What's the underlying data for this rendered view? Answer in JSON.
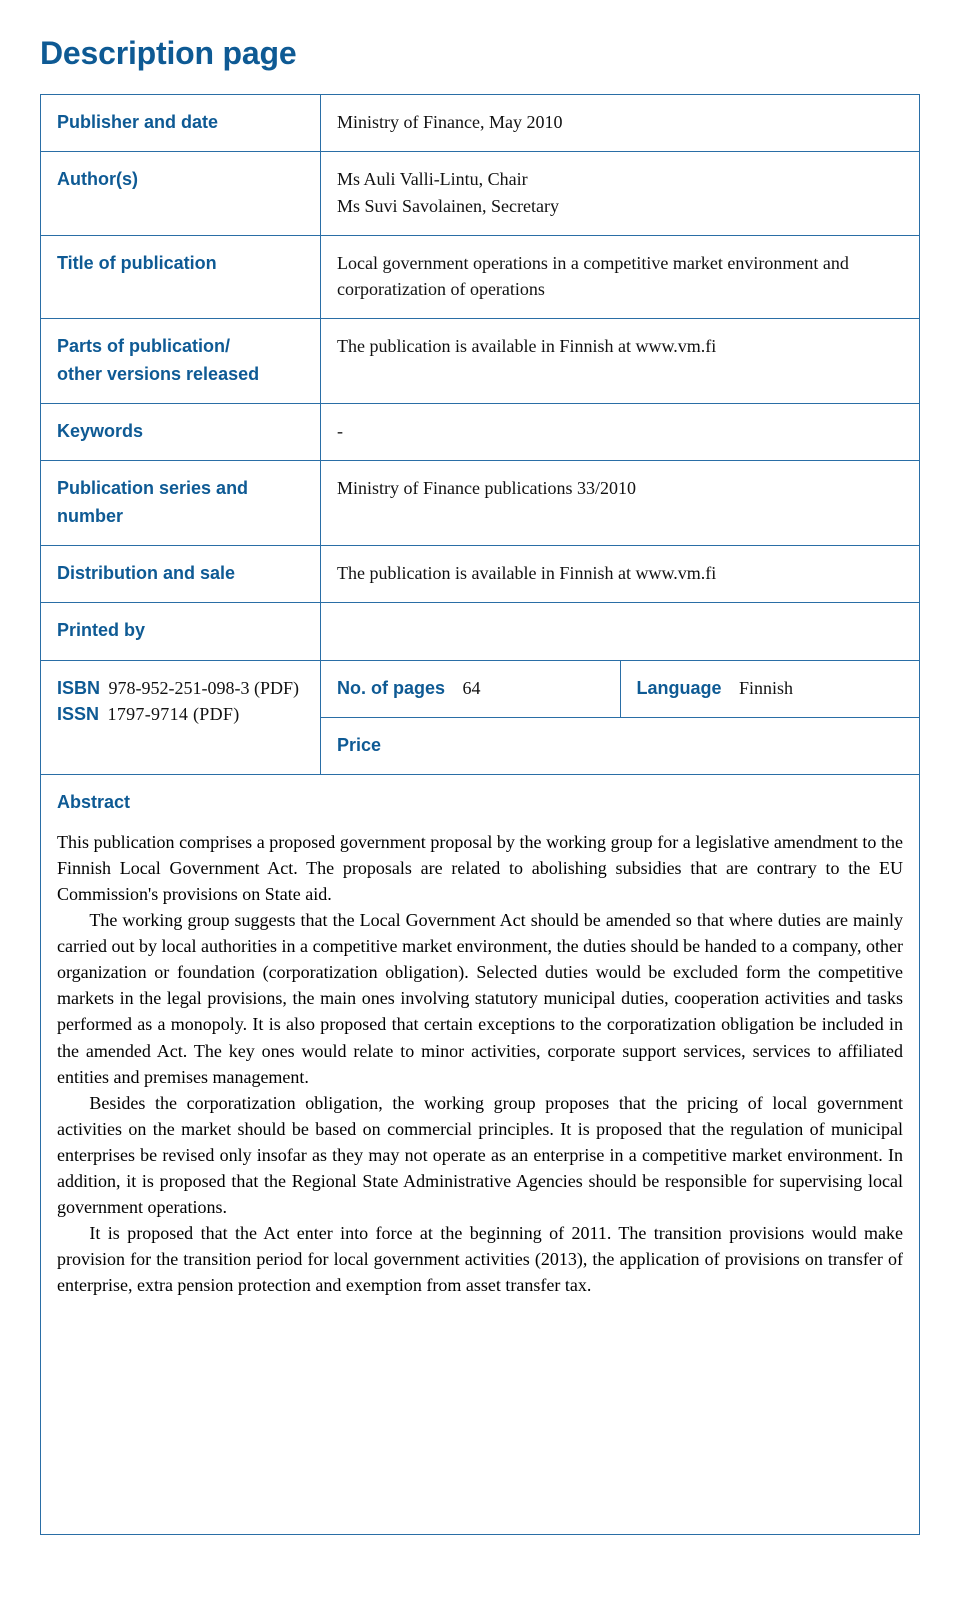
{
  "page": {
    "title": "Description page",
    "border_color": "#2a6ea6",
    "heading_color": "#0e5a94",
    "label_font": "Myriad Pro, Segoe UI, Arial, sans-serif",
    "body_font": "Minion Pro, Georgia, Times New Roman, serif"
  },
  "rows": {
    "publisher": {
      "label": "Publisher and date",
      "value": "Ministry of Finance, May 2010"
    },
    "authors": {
      "label": "Author(s)",
      "line1": "Ms Auli Valli-Lintu, Chair",
      "line2": "Ms Suvi Savolainen, Secretary"
    },
    "title_of_pub": {
      "label": "Title of publication",
      "value": "Local government operations in a competitive market environment and corporatization of operations"
    },
    "parts": {
      "label_line1": "Parts of publication/",
      "label_line2": "other versions released",
      "value": "The publication is available in Finnish at www.vm.fi"
    },
    "keywords": {
      "label": "Keywords",
      "value": "-"
    },
    "series": {
      "label_line1": "Publication series and",
      "label_line2": "number",
      "value": "Ministry of Finance publications 33/2010"
    },
    "distribution": {
      "label": "Distribution and sale",
      "value": "The publication is available in Finnish at www.vm.fi"
    },
    "printed_by": {
      "label": "Printed by",
      "value": ""
    },
    "isbn_issn": {
      "isbn_label": "ISBN",
      "isbn_value": "978-952-251-098-3 (PDF)",
      "issn_label": "ISSN",
      "issn_value": "1797-9714 (PDF)"
    },
    "pages": {
      "label": "No. of pages",
      "value": "64"
    },
    "language": {
      "label": "Language",
      "value": "Finnish"
    },
    "price": {
      "label": "Price",
      "value": ""
    }
  },
  "abstract": {
    "heading": "Abstract",
    "paragraphs": [
      "This publication comprises a proposed government proposal by the working group for a legislative amendment to the Finnish Local Government Act. The proposals are related to abolishing subsidies that are contrary to the EU Commission's provisions on State aid.",
      "The working group suggests that the Local Government Act should be amended so that where duties are mainly carried out by local authorities in a competitive market environment, the duties should be handed to a company, other organization or foundation (corporatization obligation). Selected duties would be excluded form the competitive markets in the legal provisions, the main ones involving statutory municipal duties, cooperation activities and tasks performed as a monopoly. It is also proposed that certain exceptions to the corporatization obligation be included in the amended Act. The key ones would relate to minor activities, corporate support services, services to affiliated entities and premises management.",
      "Besides the corporatization obligation, the working group proposes that the pricing of local government activities on the market should be based on commercial principles. It is proposed that the regulation of municipal enterprises be revised only insofar as they may not operate as an enterprise in a competitive market environment. In addition, it is proposed that the Regional State Administrative Agencies should be responsible for supervising local government operations.",
      "It is proposed that the Act enter into force at the beginning of 2011. The transition provisions would make provision for the transition period for local government activities (2013), the application of provisions on transfer of enterprise, extra pension protection and exemption from asset transfer tax."
    ]
  }
}
